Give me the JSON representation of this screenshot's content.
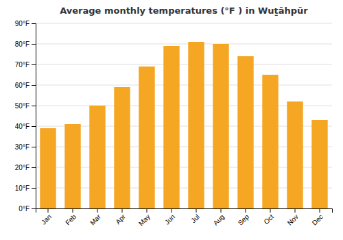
{
  "chart_data": {
    "type": "bar",
    "title": "Average monthly temperatures (°F ) in Wuṯāhpūr",
    "categories": [
      "Jan",
      "Feb",
      "Mar",
      "Apr",
      "May",
      "Jun",
      "Jul",
      "Aug",
      "Sep",
      "Oct",
      "Nov",
      "Dec"
    ],
    "values": [
      39,
      41,
      50,
      59,
      69,
      79,
      81,
      80,
      74,
      65,
      52,
      43
    ],
    "color": "#F5A623",
    "ylim": [
      0,
      90
    ],
    "yticks": [
      {
        "value": 0,
        "label": "0°F"
      },
      {
        "value": 10,
        "label": "10°F"
      },
      {
        "value": 20,
        "label": "20°F"
      },
      {
        "value": 30,
        "label": "30°F"
      },
      {
        "value": 40,
        "label": "40°F"
      },
      {
        "value": 50,
        "label": "50°F"
      },
      {
        "value": 60,
        "label": "60°F"
      },
      {
        "value": 70,
        "label": "70°F"
      },
      {
        "value": 80,
        "label": "80°F"
      },
      {
        "value": 90,
        "label": "90°F"
      }
    ],
    "grid": true
  }
}
